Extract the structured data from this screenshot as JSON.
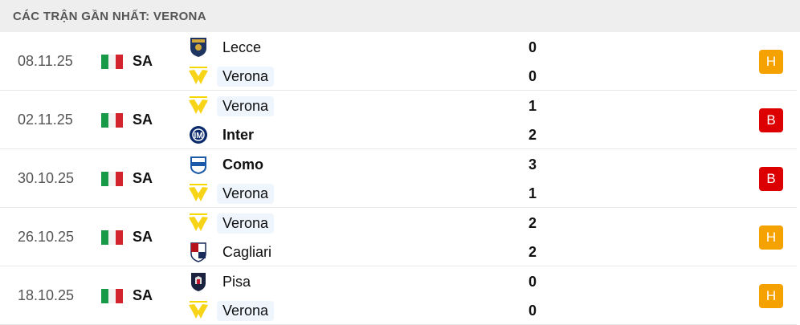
{
  "header": {
    "title": "CÁC TRẬN GẦN NHẤT: VERONA"
  },
  "colors": {
    "draw": "#f5a100",
    "loss": "#dd0000",
    "highlight": "#eef5fd"
  },
  "matches": [
    {
      "date": "08.11.25",
      "competition": "SA",
      "flag": "italy-flag",
      "home": {
        "name": "Lecce",
        "logo": "lecce-logo",
        "score": "0",
        "bold": false,
        "highlight": false
      },
      "away": {
        "name": "Verona",
        "logo": "verona-logo",
        "score": "0",
        "bold": false,
        "highlight": true
      },
      "result": "H",
      "result_type": "draw"
    },
    {
      "date": "02.11.25",
      "competition": "SA",
      "flag": "italy-flag",
      "home": {
        "name": "Verona",
        "logo": "verona-logo",
        "score": "1",
        "bold": false,
        "highlight": true
      },
      "away": {
        "name": "Inter",
        "logo": "inter-logo",
        "score": "2",
        "bold": true,
        "highlight": false
      },
      "result": "B",
      "result_type": "loss"
    },
    {
      "date": "30.10.25",
      "competition": "SA",
      "flag": "italy-flag",
      "home": {
        "name": "Como",
        "logo": "como-logo",
        "score": "3",
        "bold": true,
        "highlight": false
      },
      "away": {
        "name": "Verona",
        "logo": "verona-logo",
        "score": "1",
        "bold": false,
        "highlight": true
      },
      "result": "B",
      "result_type": "loss"
    },
    {
      "date": "26.10.25",
      "competition": "SA",
      "flag": "italy-flag",
      "home": {
        "name": "Verona",
        "logo": "verona-logo",
        "score": "2",
        "bold": false,
        "highlight": true
      },
      "away": {
        "name": "Cagliari",
        "logo": "cagliari-logo",
        "score": "2",
        "bold": false,
        "highlight": false
      },
      "result": "H",
      "result_type": "draw"
    },
    {
      "date": "18.10.25",
      "competition": "SA",
      "flag": "italy-flag",
      "home": {
        "name": "Pisa",
        "logo": "pisa-logo",
        "score": "0",
        "bold": false,
        "highlight": false
      },
      "away": {
        "name": "Verona",
        "logo": "verona-logo",
        "score": "0",
        "bold": false,
        "highlight": true
      },
      "result": "H",
      "result_type": "draw"
    }
  ]
}
